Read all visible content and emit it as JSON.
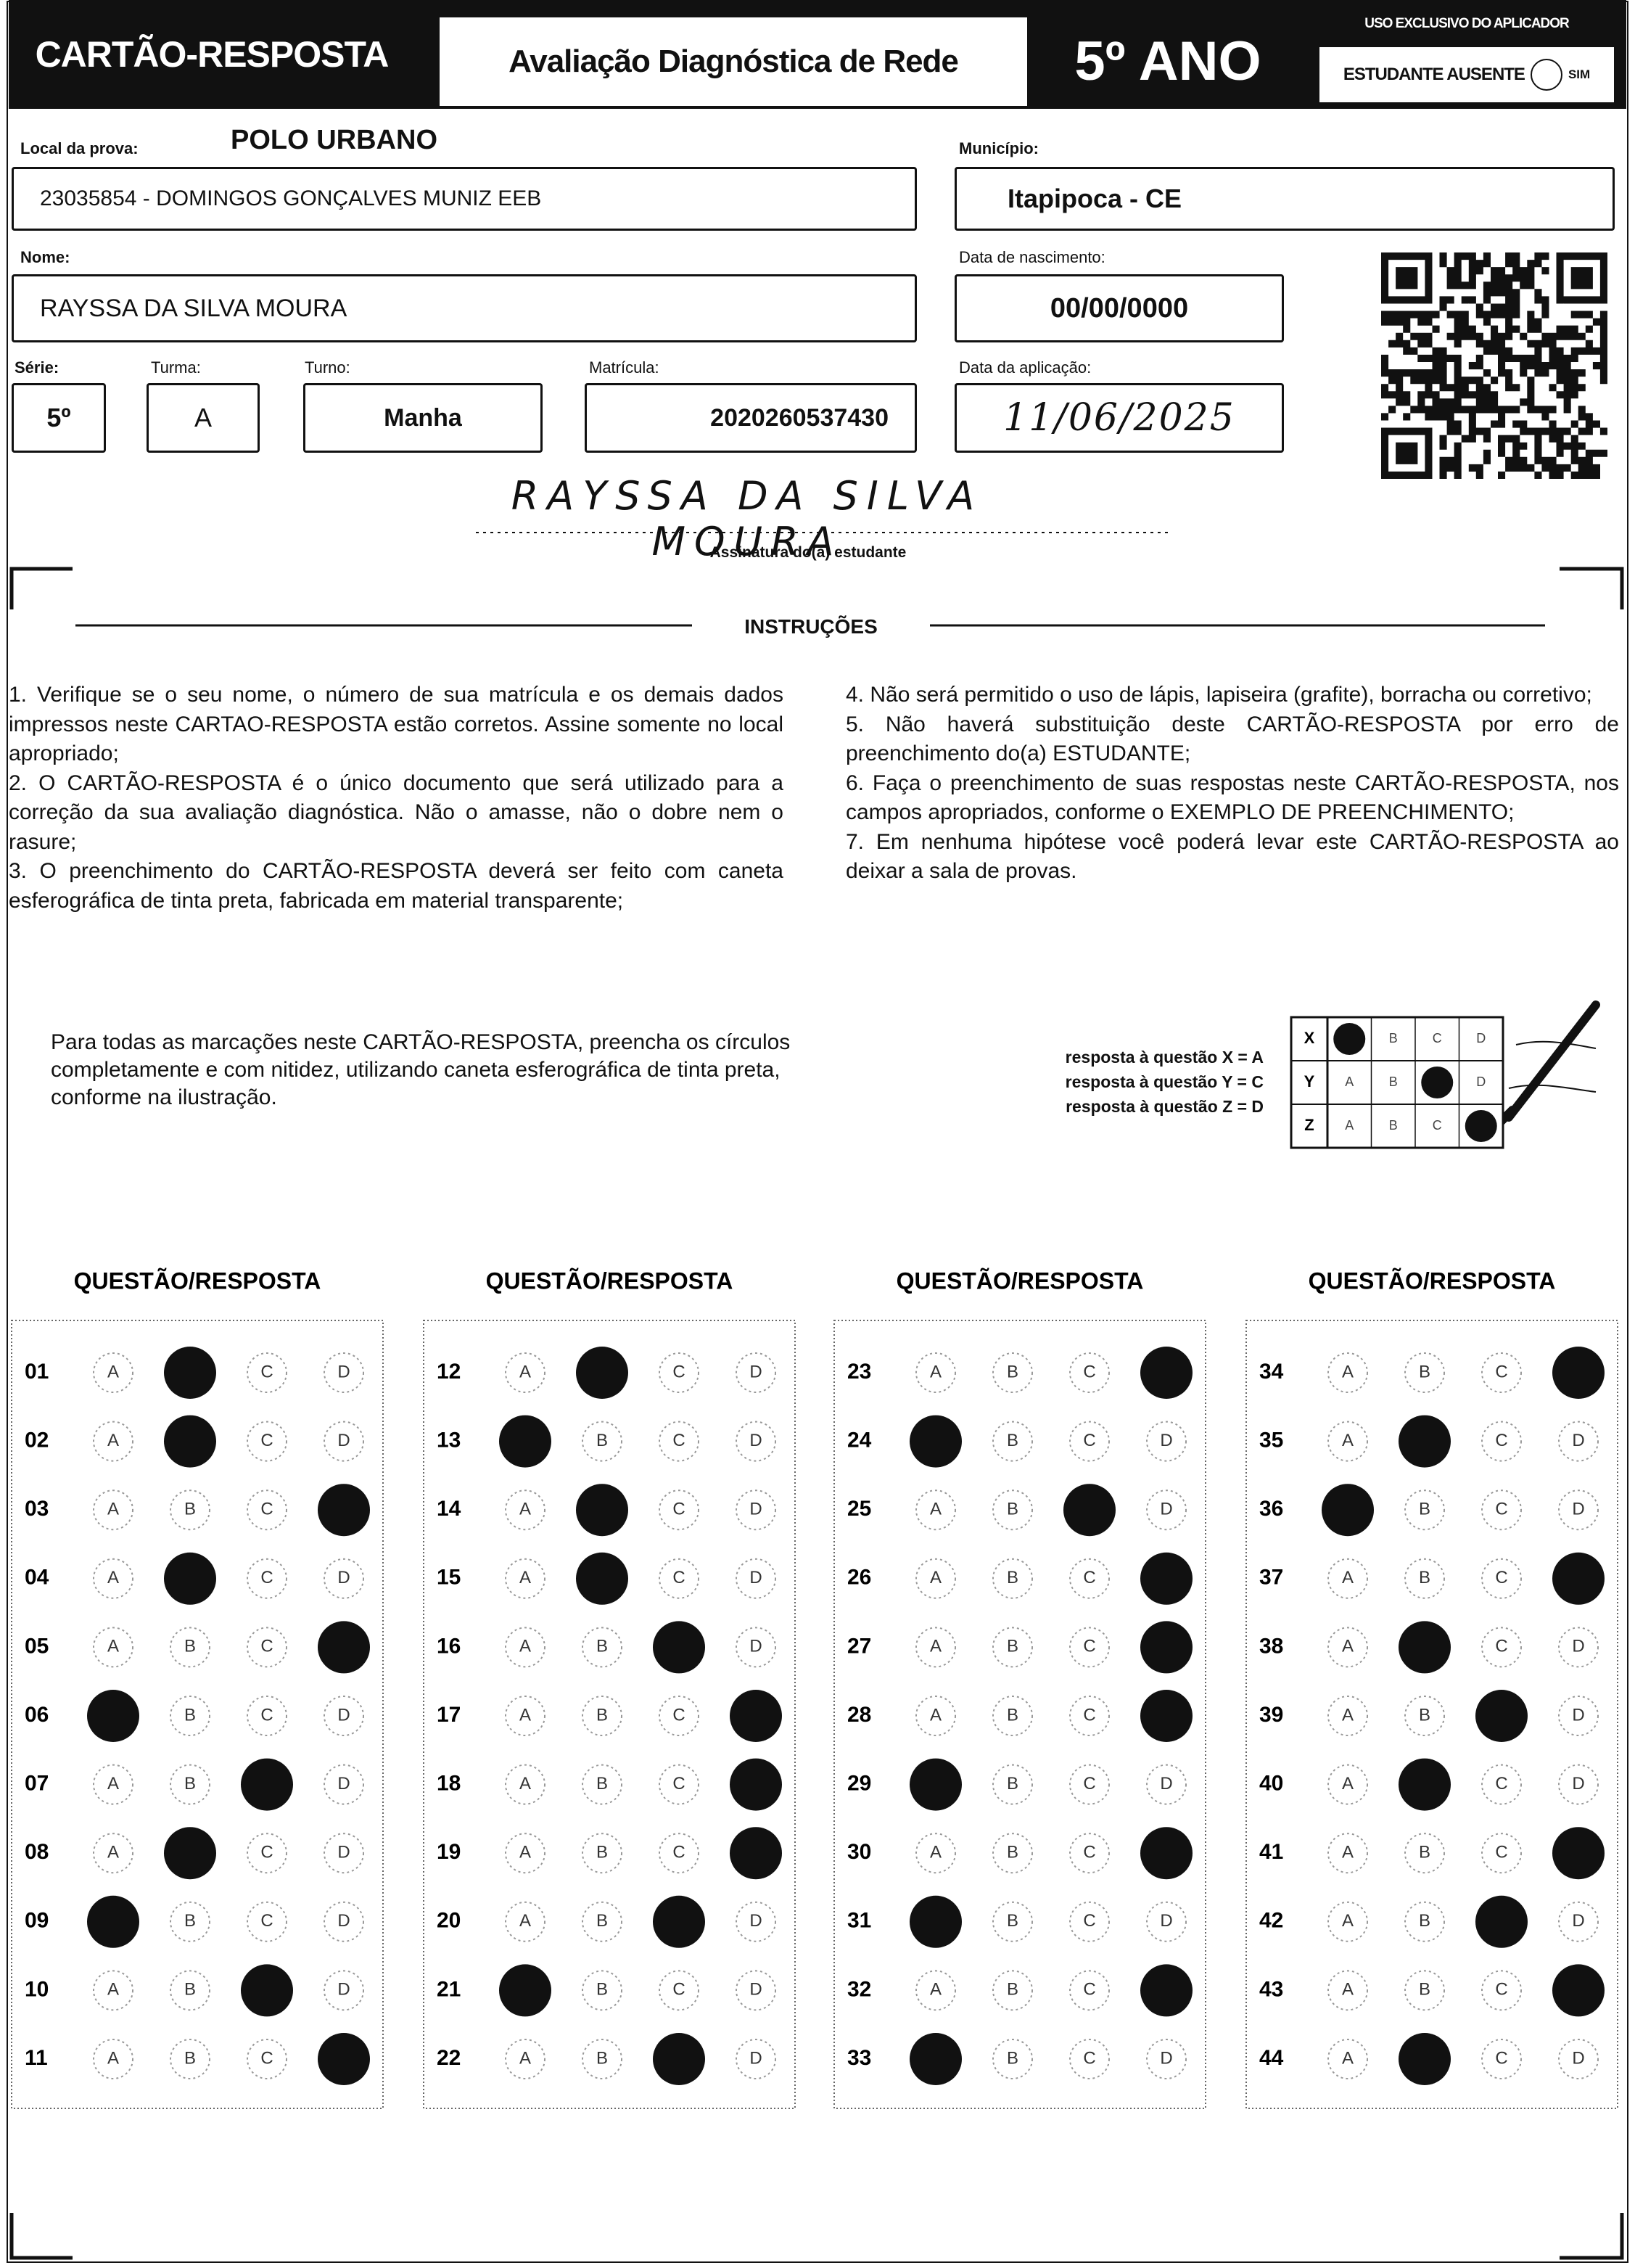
{
  "header": {
    "title": "CARTÃO-RESPOSTA",
    "subtitle": "Avaliação Diagnóstica de Rede",
    "grade": "5º ANO",
    "applicator_note": "USO EXCLUSIVO DO APLICADOR",
    "absent_label": "ESTUDANTE AUSENTE",
    "absent_option": "SIM"
  },
  "student": {
    "local_label": "Local da prova:",
    "local": "POLO URBANO",
    "school": "23035854 - DOMINGOS GONÇALVES MUNIZ EEB",
    "municipio_label": "Município:",
    "municipio": "Itapipoca - CE",
    "nome_label": "Nome:",
    "nome": "RAYSSA DA SILVA MOURA",
    "nascimento_label": "Data de nascimento:",
    "nascimento": "00/00/0000",
    "serie_label": "Série:",
    "serie": "5º",
    "turma_label": "Turma:",
    "turma": "A",
    "turno_label": "Turno:",
    "turno": "Manha",
    "matricula_label": "Matrícula:",
    "matricula": "2020260537430",
    "aplicacao_label": "Data da aplicação:",
    "aplicacao": "11/06/2025"
  },
  "signature": {
    "value": "RAYSSA DA SILVA MOURA",
    "label": "Assinatura do(a) estudante"
  },
  "instructions": {
    "title": "INSTRUÇÕES",
    "items": [
      "1. Verifique se o seu nome, o número de sua matrícula e os demais dados impressos neste CARTAO-RESPOSTA estão corretos. Assine somente no local apropriado;",
      "2. O CARTÃO-RESPOSTA é o único documento que será utilizado para a correção da sua avaliação diagnóstica. Não o amasse, não o dobre nem o rasure;",
      "3. O preenchimento do CARTÃO-RESPOSTA deverá ser feito com caneta esferográfica de tinta preta, fabricada em material transparente;",
      "4. Não será permitido o uso de lápis, lapiseira (grafite), borracha ou corretivo;",
      "5. Não haverá substituição deste CARTÃO-RESPOSTA por erro de preenchimento do(a) ESTUDANTE;",
      "6. Faça o preenchimento de suas respostas neste CARTÃO-RESPOSTA, nos campos apropriados, conforme o EXEMPLO DE PREENCHIMENTO;",
      "7. Em nenhuma hipótese você poderá levar este CARTÃO-RESPOSTA ao deixar a sala de provas."
    ]
  },
  "fill_note": "Para todas as marcações neste CARTÃO-RESPOSTA, preencha os círculos completamente e com nitidez, utilizando caneta esferográfica de tinta preta, conforme na ilustração.",
  "example": {
    "labels": [
      "resposta à questão X = A",
      "resposta à questão Y = C",
      "resposta à questão Z = D"
    ],
    "rows": [
      {
        "label": "X",
        "marked": "A"
      },
      {
        "label": "Y",
        "marked": "C"
      },
      {
        "label": "Z",
        "marked": "D"
      }
    ]
  },
  "options": [
    "A",
    "B",
    "C",
    "D"
  ],
  "answer_columns": [
    {
      "heading": "QUESTÃO/RESPOSTA",
      "questions": [
        {
          "number": "01",
          "marked": "B"
        },
        {
          "number": "02",
          "marked": "B"
        },
        {
          "number": "03",
          "marked": "D"
        },
        {
          "number": "04",
          "marked": "B"
        },
        {
          "number": "05",
          "marked": "D"
        },
        {
          "number": "06",
          "marked": "A"
        },
        {
          "number": "07",
          "marked": "C"
        },
        {
          "number": "08",
          "marked": "B"
        },
        {
          "number": "09",
          "marked": "A"
        },
        {
          "number": "10",
          "marked": "C"
        },
        {
          "number": "11",
          "marked": "D"
        }
      ]
    },
    {
      "heading": "QUESTÃO/RESPOSTA",
      "questions": [
        {
          "number": "12",
          "marked": "B"
        },
        {
          "number": "13",
          "marked": "A"
        },
        {
          "number": "14",
          "marked": "B"
        },
        {
          "number": "15",
          "marked": "B"
        },
        {
          "number": "16",
          "marked": "C"
        },
        {
          "number": "17",
          "marked": "D"
        },
        {
          "number": "18",
          "marked": "D"
        },
        {
          "number": "19",
          "marked": "D"
        },
        {
          "number": "20",
          "marked": "C"
        },
        {
          "number": "21",
          "marked": "A"
        },
        {
          "number": "22",
          "marked": "C"
        }
      ]
    },
    {
      "heading": "QUESTÃO/RESPOSTA",
      "questions": [
        {
          "number": "23",
          "marked": "D"
        },
        {
          "number": "24",
          "marked": "A"
        },
        {
          "number": "25",
          "marked": "C"
        },
        {
          "number": "26",
          "marked": "D"
        },
        {
          "number": "27",
          "marked": "D"
        },
        {
          "number": "28",
          "marked": "D"
        },
        {
          "number": "29",
          "marked": "A"
        },
        {
          "number": "30",
          "marked": "D"
        },
        {
          "number": "31",
          "marked": "A"
        },
        {
          "number": "32",
          "marked": "D"
        },
        {
          "number": "33",
          "marked": "A"
        }
      ]
    },
    {
      "heading": "QUESTÃO/RESPOSTA",
      "questions": [
        {
          "number": "34",
          "marked": "D"
        },
        {
          "number": "35",
          "marked": "B"
        },
        {
          "number": "36",
          "marked": "A"
        },
        {
          "number": "37",
          "marked": "D"
        },
        {
          "number": "38",
          "marked": "B"
        },
        {
          "number": "39",
          "marked": "C"
        },
        {
          "number": "40",
          "marked": "B"
        },
        {
          "number": "41",
          "marked": "D"
        },
        {
          "number": "42",
          "marked": "C"
        },
        {
          "number": "43",
          "marked": "D"
        },
        {
          "number": "44",
          "marked": "B"
        }
      ]
    }
  ]
}
